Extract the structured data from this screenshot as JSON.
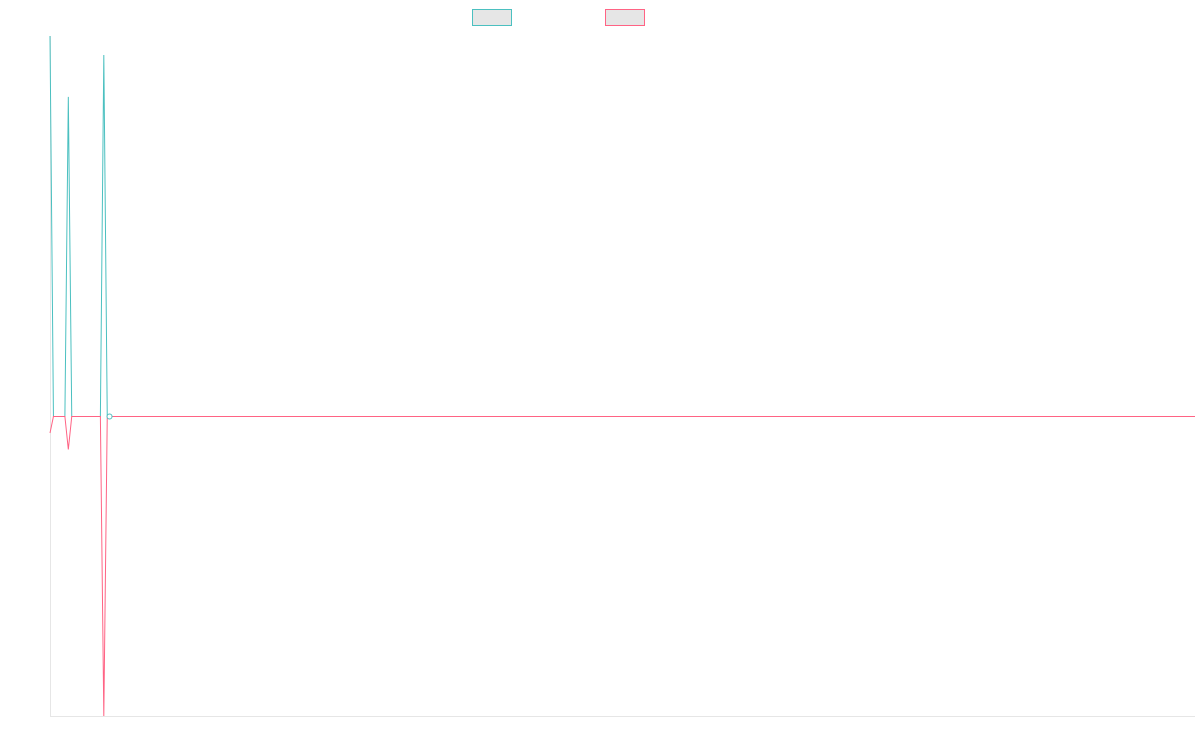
{
  "chart_data": {
    "type": "line",
    "title": "",
    "xlabel": "",
    "ylabel": "",
    "legend_position": "top-center",
    "grid": false,
    "x_range": [
      0,
      1000
    ],
    "ylim": [
      -1,
      1
    ],
    "series": [
      {
        "color": "#4bc0c0",
        "swatch_fill": "#e6e6e6",
        "points": [
          [
            0,
            1.0
          ],
          [
            3,
            0.0
          ],
          [
            13,
            0.0
          ],
          [
            16,
            0.84
          ],
          [
            19,
            0.0
          ],
          [
            44,
            0.0
          ],
          [
            47,
            0.95
          ],
          [
            50,
            0.0
          ],
          [
            1000,
            0.0
          ]
        ]
      },
      {
        "color": "#ff6384",
        "swatch_fill": "#e6e6e6",
        "points": [
          [
            0,
            -0.055
          ],
          [
            3,
            0.0
          ],
          [
            13,
            0.0
          ],
          [
            16,
            -0.11
          ],
          [
            19,
            0.0
          ],
          [
            44,
            0.0
          ],
          [
            47,
            -1.0
          ],
          [
            50,
            0.0
          ],
          [
            1000,
            0.0
          ]
        ]
      }
    ],
    "highlight_point": [
      52,
      0.0
    ]
  }
}
